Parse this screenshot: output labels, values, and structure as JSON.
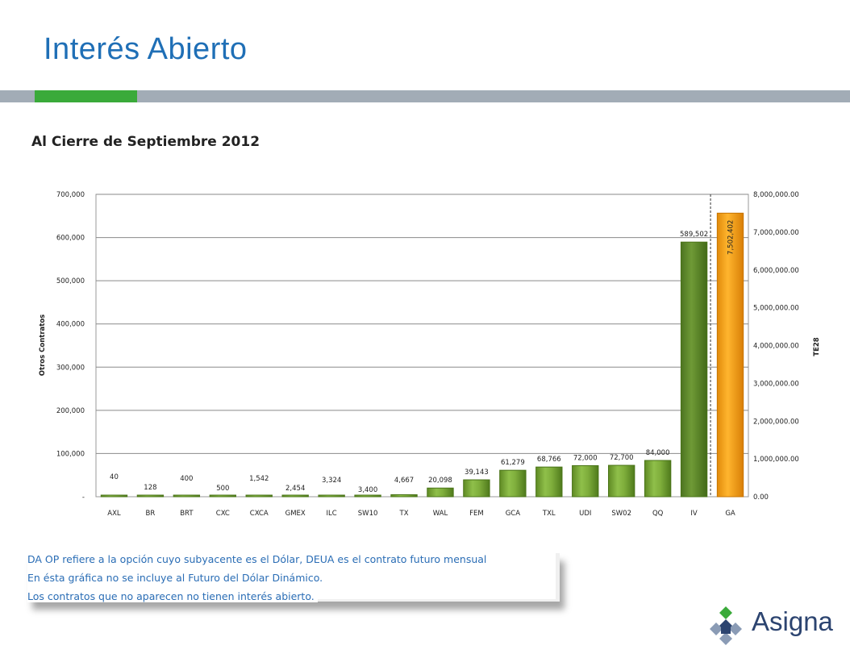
{
  "page": {
    "title": "Interés Abierto",
    "chart_heading": "Al Cierre de Septiembre 2012"
  },
  "notes": [
    "DA OP refiere a la opción cuyo subyacente es el Dólar, DEUA es el contrato futuro mensual",
    "En ésta gráfica no se incluye al Futuro del Dólar Dinámico.",
    "Los contratos que no aparecen no tienen interés abierto."
  ],
  "logo": {
    "text": "Asigna",
    "icon": "asigna-logo-icon"
  },
  "colors": {
    "title": "#1f6fb6",
    "band": "#a2acb6",
    "accent": "#3aaa3a",
    "bar_green": "#7fae3c",
    "bar_dark": "#5f8a2a",
    "bar_orange": "#f9a51b",
    "note_text": "#2a6db5"
  },
  "chart_data": {
    "type": "bar",
    "title": "",
    "ylabel": "Otros Contratos",
    "y2label": "TE28",
    "ylim": [
      0,
      700000
    ],
    "y2lim": [
      0,
      8000000
    ],
    "y_ticks": [
      "-",
      "100,000",
      "200,000",
      "300,000",
      "400,000",
      "500,000",
      "600,000",
      "700,000"
    ],
    "y2_ticks": [
      "0.00",
      "1,000,000.00",
      "2,000,000.00",
      "3,000,000.00",
      "4,000,000.00",
      "5,000,000.00",
      "6,000,000.00",
      "7,000,000.00",
      "8,000,000.00"
    ],
    "categories": [
      "AXL",
      "BR",
      "BRT",
      "CXC",
      "CXCA",
      "GMEX",
      "ILC",
      "SW10",
      "TX",
      "WAL",
      "FEM",
      "GCA",
      "TXL",
      "UDI",
      "SW02",
      "QQ",
      "IV",
      "GA"
    ],
    "values": [
      40,
      128,
      400,
      500,
      1542,
      2454,
      3324,
      3400,
      4667,
      20098,
      39143,
      61279,
      68766,
      72000,
      72700,
      84000,
      589502,
      7502402
    ],
    "labels": [
      "40",
      "128",
      "400",
      "500",
      "1,542",
      "2,454",
      "3,324",
      "3,400",
      "4,667",
      "20,098",
      "39,143",
      "61,279",
      "68,766",
      "72,000",
      "72,700",
      "84,000",
      "589,502",
      "7,502,402"
    ],
    "secondary_axis_index": 17,
    "grid": true
  }
}
